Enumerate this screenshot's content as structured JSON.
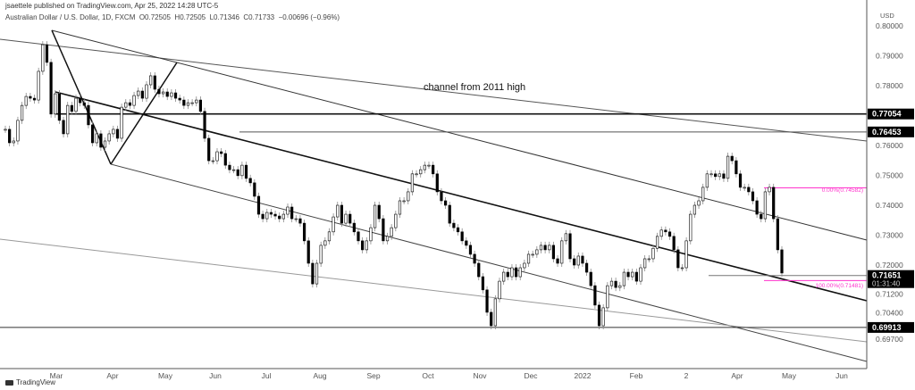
{
  "header": {
    "published": "jsaettele published on TradingView.com, Apr 25, 2022 14:28 UTC-5",
    "symbol": "Australian Dollar / U.S. Dollar, 1D, FXCM",
    "open": "O0.72505",
    "high": "H0.72505",
    "low": "L0.71346",
    "close": "C0.71733",
    "change": "−0.00696 (−0.96%)"
  },
  "footer": {
    "logo": "TradingView"
  },
  "chart_data": {
    "type": "candlestick",
    "title": "Australian Dollar / U.S. Dollar, 1D, FXCM",
    "currency": "USD",
    "ylim": [
      0.6955,
      0.8105
    ],
    "y_ticks": [
      "0.80000",
      "0.79000",
      "0.78000",
      "0.76000",
      "0.75000",
      "0.74000",
      "0.73000",
      "0.72000",
      "0.71200",
      "0.70400",
      "0.69700"
    ],
    "x_ticks": [
      "Mar",
      "Apr",
      "May",
      "Jun",
      "Jul",
      "Aug",
      "Sep",
      "Oct",
      "Nov",
      "Dec",
      "2022",
      "Feb",
      "2",
      "Apr",
      "May",
      "Jun"
    ],
    "price_labels": [
      "0.77054",
      "0.76453",
      "0.71651",
      "0.69913"
    ],
    "countdown": "01:31:40",
    "annotations": {
      "channel_text": "channel from 2011 high",
      "fib_0": "0.00%(0.74582)",
      "fib_100": "100.00%(0.71481)"
    },
    "levels": [
      0.77054,
      0.76453,
      0.71651,
      0.69913
    ],
    "fib": {
      "level_0": 0.74582,
      "level_100": 0.71481,
      "color": "#ff33cc"
    },
    "candle_color": "#000000",
    "closes": [
      0.7654,
      0.7609,
      0.7615,
      0.7684,
      0.7734,
      0.7764,
      0.7758,
      0.7752,
      0.7848,
      0.7937,
      0.7878,
      0.7705,
      0.7773,
      0.7684,
      0.7639,
      0.7734,
      0.7714,
      0.7758,
      0.7743,
      0.7734,
      0.7669,
      0.7609,
      0.7639,
      0.7594,
      0.7615,
      0.7639,
      0.7654,
      0.7624,
      0.7728,
      0.7743,
      0.7734,
      0.7767,
      0.7782,
      0.7758,
      0.7803,
      0.7833,
      0.7788,
      0.7773,
      0.7779,
      0.7764,
      0.7776,
      0.7758,
      0.7752,
      0.7734,
      0.7743,
      0.7743,
      0.7752,
      0.7714,
      0.7624,
      0.7549,
      0.7549,
      0.7579,
      0.7573,
      0.7534,
      0.7519,
      0.7519,
      0.7499,
      0.7534,
      0.749,
      0.7475,
      0.743,
      0.737,
      0.7355,
      0.7376,
      0.737,
      0.7364,
      0.7355,
      0.737,
      0.7394,
      0.7355,
      0.7355,
      0.734,
      0.7281,
      0.7206,
      0.7137,
      0.7206,
      0.7266,
      0.7281,
      0.7311,
      0.7361,
      0.74,
      0.734,
      0.737,
      0.734,
      0.7311,
      0.7281,
      0.7251,
      0.7281,
      0.7325,
      0.74,
      0.7355,
      0.7281,
      0.7296,
      0.7325,
      0.737,
      0.7415,
      0.7415,
      0.7445,
      0.7505,
      0.7505,
      0.7519,
      0.7534,
      0.7534,
      0.7505,
      0.7445,
      0.7415,
      0.74,
      0.734,
      0.7325,
      0.7311,
      0.7281,
      0.7266,
      0.7236,
      0.7206,
      0.7161,
      0.7117,
      0.7042,
      0.6997,
      0.7087,
      0.7146,
      0.7176,
      0.7161,
      0.7191,
      0.7161,
      0.7191,
      0.7206,
      0.7236,
      0.7236,
      0.7251,
      0.7266,
      0.7251,
      0.7266,
      0.7221,
      0.7206,
      0.7281,
      0.7305,
      0.7221,
      0.72,
      0.723,
      0.7206,
      0.7176,
      0.7131,
      0.7066,
      0.6997,
      0.7057,
      0.7131,
      0.7146,
      0.7125,
      0.7131,
      0.7176,
      0.7161,
      0.7176,
      0.7146,
      0.7191,
      0.7221,
      0.7221,
      0.7256,
      0.7296,
      0.7317,
      0.7311,
      0.7296,
      0.7251,
      0.7191,
      0.7191,
      0.7281,
      0.737,
      0.74,
      0.7415,
      0.746,
      0.7505,
      0.7505,
      0.7496,
      0.7505,
      0.749,
      0.7564,
      0.7549,
      0.7505,
      0.746,
      0.746,
      0.7445,
      0.7415,
      0.737,
      0.7355,
      0.7445,
      0.746,
      0.7355,
      0.7251,
      0.71733
    ]
  }
}
